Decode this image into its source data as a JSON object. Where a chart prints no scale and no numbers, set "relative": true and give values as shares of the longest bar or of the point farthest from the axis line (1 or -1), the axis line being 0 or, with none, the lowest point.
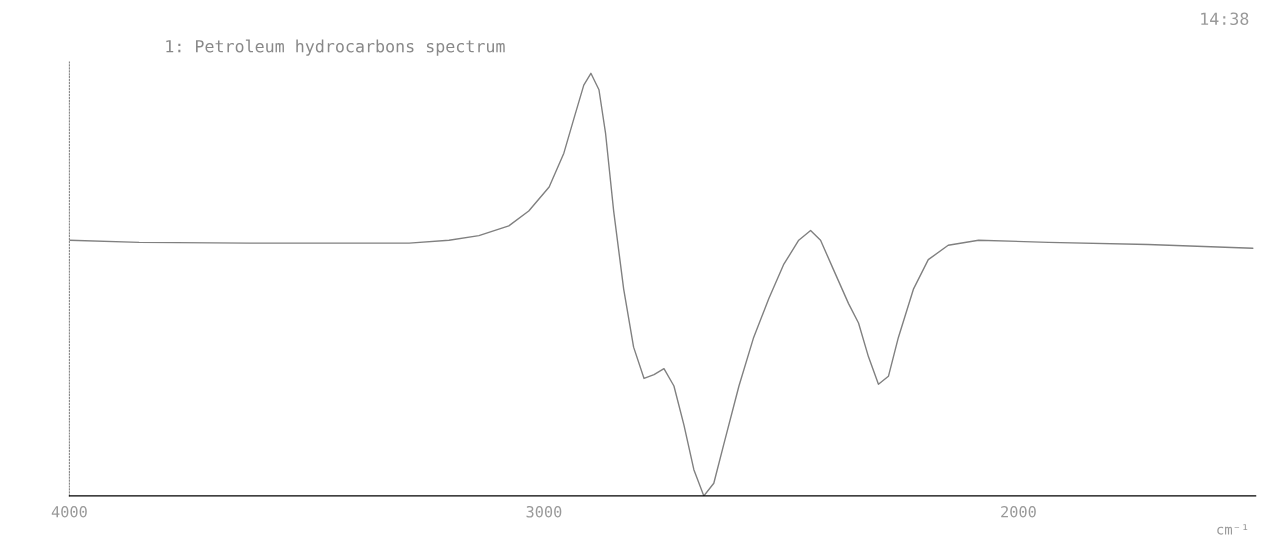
{
  "chart_data": {
    "type": "line",
    "title": "1: Petroleum hydrocarbons spectrum",
    "xlabel": "cm⁻¹",
    "annotations": [
      "14:38"
    ],
    "relative": true,
    "x": [
      4000,
      3853,
      3621,
      3284,
      3200,
      3137,
      3074,
      3032,
      2989,
      2958,
      2937,
      2916,
      2901,
      2884,
      2870,
      2853,
      2832,
      2811,
      2789,
      2768,
      2747,
      2726,
      2705,
      2684,
      2663,
      2642,
      2621,
      2589,
      2558,
      2526,
      2495,
      2463,
      2438,
      2417,
      2390,
      2358,
      2337,
      2316,
      2295,
      2274,
      2253,
      2221,
      2190,
      2148,
      2084,
      1937,
      1727,
      1506
    ],
    "xlim": [
      4000,
      1500
    ],
    "xticks": [
      4000,
      3000,
      2000
    ],
    "series": [
      {
        "color": "#808080",
        "values": [
          0.605,
          0.6,
          0.598,
          0.598,
          0.605,
          0.616,
          0.639,
          0.674,
          0.731,
          0.811,
          0.892,
          0.972,
          1,
          0.961,
          0.857,
          0.674,
          0.49,
          0.352,
          0.278,
          0.287,
          0.301,
          0.26,
          0.168,
          0.062,
          0,
          0.03,
          0.122,
          0.26,
          0.375,
          0.467,
          0.547,
          0.605,
          0.628,
          0.605,
          0.536,
          0.455,
          0.409,
          0.329,
          0.264,
          0.283,
          0.375,
          0.49,
          0.559,
          0.593,
          0.605,
          0.6,
          0.595,
          0.586
        ]
      }
    ],
    "grid": false,
    "marker": "none",
    "line_style": "solid"
  }
}
